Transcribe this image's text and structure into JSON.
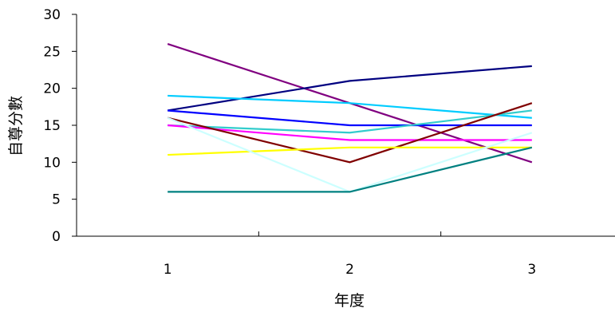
{
  "chart_data": {
    "type": "line",
    "xlabel": "年度",
    "ylabel": "自尊分數",
    "categories": [
      "1",
      "2",
      "3"
    ],
    "ylim": [
      0,
      30
    ],
    "yticks": [
      "0",
      "5",
      "10",
      "15",
      "20",
      "25",
      "30"
    ],
    "grid": false,
    "legend": "none",
    "series": [
      {
        "color": "#800080",
        "values": [
          26,
          18,
          10
        ]
      },
      {
        "color": "#000080",
        "values": [
          17,
          21,
          23
        ]
      },
      {
        "color": "#00CCFF",
        "values": [
          19,
          18,
          16
        ]
      },
      {
        "color": "#0000FF",
        "values": [
          17,
          15,
          15
        ]
      },
      {
        "color": "#33CCCC",
        "values": [
          15,
          14,
          17
        ]
      },
      {
        "color": "#FF00FF",
        "values": [
          15,
          13,
          13
        ]
      },
      {
        "color": "#800000",
        "values": [
          16,
          10,
          18
        ]
      },
      {
        "color": "#FFFF00",
        "values": [
          11,
          12,
          12
        ]
      },
      {
        "color": "#CCFFFF",
        "values": [
          16,
          6,
          14
        ]
      },
      {
        "color": "#008080",
        "values": [
          6,
          6,
          12
        ]
      }
    ]
  }
}
